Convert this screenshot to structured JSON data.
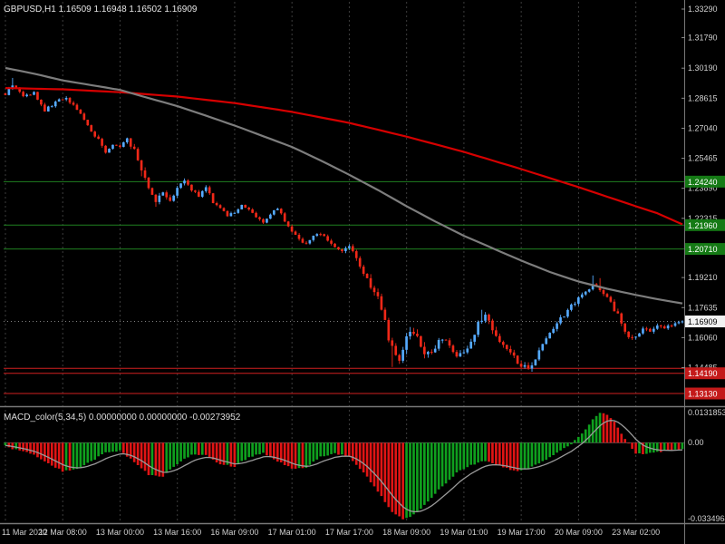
{
  "window": {
    "header": "GBPUSD,H1  1.16509 1.16948 1.16502 1.16909"
  },
  "colors": {
    "bg": "#000000",
    "up": "#55aaff",
    "down": "#f02818",
    "grid": "#3d3d3d",
    "ma_slow": "#d60000",
    "ma_fast": "#7d7d7d",
    "level_green": "#1f8020",
    "level_red": "#d02020",
    "hist_up": "#0fa01e",
    "hist_down": "#e01414",
    "signal": "#9a9a9a",
    "badge_green": "#157a15",
    "badge_red": "#c41a1a",
    "current_badge_bg": "#f2f2f2",
    "separator": "#787878",
    "zero_line": "#4f4f4f"
  },
  "price_axis": {
    "scale": {
      "p1": 1.3329,
      "y1": 10,
      "p2": 1.1313,
      "y2": 434
    },
    "labels": [
      "1.33290",
      "1.31790",
      "1.30190",
      "1.28615",
      "1.27040",
      "1.25465",
      "1.23890",
      "1.22315",
      "1.20740",
      "1.19210",
      "1.17635",
      "1.16060",
      "1.14485",
      "1.12910"
    ]
  },
  "levels": [
    {
      "price": 1.2424,
      "color": "green",
      "badge": true
    },
    {
      "price": 1.2196,
      "color": "green",
      "badge": true
    },
    {
      "price": 1.2071,
      "color": "green",
      "badge": true
    },
    {
      "price": 1.1445,
      "color": "red",
      "badge": false
    },
    {
      "price": 1.1419,
      "color": "red",
      "badge": true
    },
    {
      "price": 1.1313,
      "color": "red",
      "badge": true
    }
  ],
  "current_price": "1.16909",
  "time_axis": {
    "labels": [
      "11 Mar 2020",
      "12 Mar 08:00",
      "13 Mar 00:00",
      "13 Mar 16:00",
      "16 Mar 09:00",
      "17 Mar 01:00",
      "17 Mar 17:00",
      "18 Mar 09:00",
      "19 Mar 01:00",
      "19 Mar 17:00",
      "20 Mar 09:00",
      "23 Mar 02:00"
    ]
  },
  "macd_panel": {
    "label": "MACD_color(5,34,5) 0.00000000 0.00000000 -0.00273952",
    "axis_labels": [
      "0.0131853",
      "0.00",
      "-0.0334964"
    ],
    "max": 0.0131853,
    "min": -0.0334964
  },
  "chart_data": [
    {
      "type": "candlestick",
      "title": "GBPUSD,H1",
      "n": 190,
      "ylim": [
        1.1291,
        1.3329
      ],
      "close_waypoints": [
        [
          0,
          1.288
        ],
        [
          2,
          1.2935
        ],
        [
          5,
          1.2868
        ],
        [
          8,
          1.2892
        ],
        [
          11,
          1.2798
        ],
        [
          14,
          1.2838
        ],
        [
          17,
          1.2868
        ],
        [
          20,
          1.28
        ],
        [
          23,
          1.2718
        ],
        [
          26,
          1.264
        ],
        [
          28,
          1.2578
        ],
        [
          30,
          1.2626
        ],
        [
          32,
          1.26
        ],
        [
          34,
          1.2642
        ],
        [
          36,
          1.2588
        ],
        [
          38,
          1.2478
        ],
        [
          40,
          1.2388
        ],
        [
          42,
          1.233
        ],
        [
          44,
          1.2362
        ],
        [
          46,
          1.2318
        ],
        [
          48,
          1.2402
        ],
        [
          50,
          1.2432
        ],
        [
          52,
          1.2378
        ],
        [
          54,
          1.2348
        ],
        [
          56,
          1.2392
        ],
        [
          58,
          1.2318
        ],
        [
          60,
          1.2278
        ],
        [
          62,
          1.2248
        ],
        [
          64,
          1.2262
        ],
        [
          66,
          1.2302
        ],
        [
          68,
          1.2278
        ],
        [
          70,
          1.2238
        ],
        [
          72,
          1.2214
        ],
        [
          74,
          1.2252
        ],
        [
          76,
          1.2282
        ],
        [
          78,
          1.2218
        ],
        [
          80,
          1.2164
        ],
        [
          82,
          1.2118
        ],
        [
          84,
          1.2094
        ],
        [
          86,
          1.2132
        ],
        [
          88,
          1.2156
        ],
        [
          90,
          1.2118
        ],
        [
          92,
          1.2078
        ],
        [
          94,
          1.2058
        ],
        [
          96,
          1.2094
        ],
        [
          98,
          1.2028
        ],
        [
          100,
          1.1948
        ],
        [
          102,
          1.1878
        ],
        [
          104,
          1.1808
        ],
        [
          106,
          1.1678
        ],
        [
          108,
          1.1548
        ],
        [
          110,
          1.1498
        ],
        [
          112,
          1.1592
        ],
        [
          114,
          1.1642
        ],
        [
          116,
          1.1558
        ],
        [
          118,
          1.1518
        ],
        [
          120,
          1.1562
        ],
        [
          122,
          1.1602
        ],
        [
          124,
          1.1558
        ],
        [
          126,
          1.1518
        ],
        [
          128,
          1.1536
        ],
        [
          130,
          1.1592
        ],
        [
          132,
          1.1682
        ],
        [
          134,
          1.1722
        ],
        [
          136,
          1.1652
        ],
        [
          138,
          1.1588
        ],
        [
          140,
          1.1548
        ],
        [
          142,
          1.1498
        ],
        [
          144,
          1.1464
        ],
        [
          146,
          1.1438
        ],
        [
          148,
          1.1502
        ],
        [
          150,
          1.1562
        ],
        [
          152,
          1.1622
        ],
        [
          154,
          1.1682
        ],
        [
          156,
          1.1722
        ],
        [
          158,
          1.1772
        ],
        [
          160,
          1.1812
        ],
        [
          162,
          1.1852
        ],
        [
          164,
          1.1882
        ],
        [
          166,
          1.1862
        ],
        [
          168,
          1.1822
        ],
        [
          170,
          1.1752
        ],
        [
          172,
          1.1692
        ],
        [
          174,
          1.1598
        ],
        [
          176,
          1.1622
        ],
        [
          178,
          1.1656
        ],
        [
          180,
          1.1646
        ],
        [
          182,
          1.1662
        ],
        [
          184,
          1.1652
        ],
        [
          186,
          1.1672
        ],
        [
          189,
          1.16909
        ]
      ],
      "volatility_waypoints": [
        [
          0,
          0.0016
        ],
        [
          30,
          0.002
        ],
        [
          40,
          0.0032
        ],
        [
          50,
          0.0022
        ],
        [
          64,
          0.0016
        ],
        [
          80,
          0.0018
        ],
        [
          96,
          0.0024
        ],
        [
          104,
          0.0046
        ],
        [
          112,
          0.0052
        ],
        [
          124,
          0.0036
        ],
        [
          136,
          0.0036
        ],
        [
          148,
          0.003
        ],
        [
          160,
          0.0024
        ],
        [
          175,
          0.0028
        ],
        [
          189,
          0.0014
        ]
      ],
      "spikes": [
        {
          "i": 2,
          "high": 1.2968
        },
        {
          "i": 38,
          "low": 1.2452
        },
        {
          "i": 42,
          "low": 1.2292
        },
        {
          "i": 108,
          "low": 1.1452
        },
        {
          "i": 110,
          "low": 1.1468
        },
        {
          "i": 133,
          "high": 1.1752
        },
        {
          "i": 144,
          "low": 1.1448
        },
        {
          "i": 146,
          "low": 1.1437
        },
        {
          "i": 164,
          "high": 1.1932
        },
        {
          "i": 166,
          "high": 1.1918
        }
      ],
      "overlays": [
        {
          "name": "slow-ma",
          "color_key": "ma_slow",
          "points": [
            [
              0,
              1.2915
            ],
            [
              16,
              1.2908
            ],
            [
              32,
              1.2893
            ],
            [
              48,
              1.287
            ],
            [
              64,
              1.2836
            ],
            [
              80,
              1.279
            ],
            [
              96,
              1.2732
            ],
            [
              112,
              1.266
            ],
            [
              128,
              1.258
            ],
            [
              144,
              1.249
            ],
            [
              160,
              1.2395
            ],
            [
              168,
              1.2345
            ],
            [
              176,
              1.2295
            ],
            [
              182,
              1.2258
            ],
            [
              189,
              1.22
            ]
          ]
        },
        {
          "name": "fast-ma",
          "color_key": "ma_fast",
          "points": [
            [
              0,
              1.302
            ],
            [
              8,
              1.299
            ],
            [
              16,
              1.2955
            ],
            [
              24,
              1.293
            ],
            [
              32,
              1.2905
            ],
            [
              40,
              1.2862
            ],
            [
              48,
              1.282
            ],
            [
              56,
              1.277
            ],
            [
              64,
              1.2718
            ],
            [
              72,
              1.2662
            ],
            [
              80,
              1.2606
            ],
            [
              88,
              1.2535
            ],
            [
              96,
              1.246
            ],
            [
              104,
              1.238
            ],
            [
              112,
              1.2295
            ],
            [
              120,
              1.2215
            ],
            [
              128,
              1.214
            ],
            [
              136,
              1.2075
            ],
            [
              144,
              1.201
            ],
            [
              152,
              1.195
            ],
            [
              160,
              1.19
            ],
            [
              168,
              1.1862
            ],
            [
              176,
              1.183
            ],
            [
              182,
              1.1808
            ],
            [
              189,
              1.1785
            ]
          ]
        }
      ],
      "h_levels": [
        1.2424,
        1.2196,
        1.2071,
        1.1445,
        1.1419,
        1.1313
      ]
    },
    {
      "type": "bar",
      "title": "MACD_color(5,34,5)",
      "ylim": [
        -0.0334964,
        0.0131853
      ],
      "current_value": -0.00273952,
      "value_waypoints": [
        [
          0,
          -0.0015
        ],
        [
          4,
          -0.0035
        ],
        [
          8,
          -0.005
        ],
        [
          12,
          -0.009
        ],
        [
          16,
          -0.0125
        ],
        [
          20,
          -0.0113
        ],
        [
          24,
          -0.0082
        ],
        [
          28,
          -0.0042
        ],
        [
          32,
          -0.0036
        ],
        [
          36,
          -0.0082
        ],
        [
          40,
          -0.014
        ],
        [
          44,
          -0.0146
        ],
        [
          48,
          -0.0092
        ],
        [
          52,
          -0.0052
        ],
        [
          56,
          -0.0056
        ],
        [
          60,
          -0.0094
        ],
        [
          64,
          -0.0104
        ],
        [
          68,
          -0.0062
        ],
        [
          72,
          -0.0046
        ],
        [
          76,
          -0.008
        ],
        [
          80,
          -0.0114
        ],
        [
          84,
          -0.0108
        ],
        [
          88,
          -0.0062
        ],
        [
          92,
          -0.0046
        ],
        [
          96,
          -0.0062
        ],
        [
          100,
          -0.013
        ],
        [
          104,
          -0.021
        ],
        [
          108,
          -0.0302
        ],
        [
          111,
          -0.0335
        ],
        [
          114,
          -0.0314
        ],
        [
          118,
          -0.0258
        ],
        [
          122,
          -0.019
        ],
        [
          126,
          -0.013
        ],
        [
          130,
          -0.0096
        ],
        [
          134,
          -0.008
        ],
        [
          138,
          -0.01
        ],
        [
          142,
          -0.0124
        ],
        [
          146,
          -0.0114
        ],
        [
          150,
          -0.008
        ],
        [
          154,
          -0.0046
        ],
        [
          158,
          -0.0006
        ],
        [
          161,
          0.004
        ],
        [
          164,
          0.0104
        ],
        [
          166,
          0.0132
        ],
        [
          168,
          0.0124
        ],
        [
          170,
          0.009
        ],
        [
          172,
          0.004
        ],
        [
          174,
          -0.0006
        ],
        [
          176,
          -0.0046
        ],
        [
          179,
          -0.005
        ],
        [
          182,
          -0.004
        ],
        [
          185,
          -0.0033
        ],
        [
          189,
          -0.0027
        ]
      ]
    }
  ]
}
